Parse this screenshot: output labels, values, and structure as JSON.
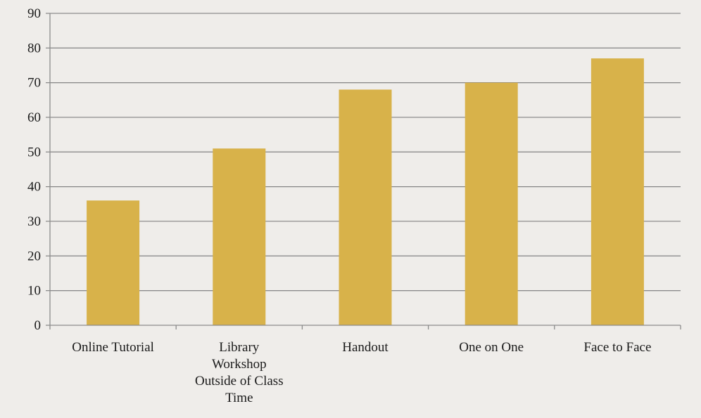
{
  "chart_data": {
    "type": "bar",
    "categories": [
      [
        "Online Tutorial"
      ],
      [
        "Library",
        "Workshop",
        "Outside of Class",
        "Time"
      ],
      [
        "Handout"
      ],
      [
        "One on One"
      ],
      [
        "Face to Face"
      ]
    ],
    "values": [
      36,
      51,
      68,
      70,
      77
    ],
    "title": "",
    "xlabel": "",
    "ylabel": "",
    "ylim": [
      0,
      90
    ],
    "yticks": [
      0,
      10,
      20,
      30,
      40,
      50,
      60,
      70,
      80,
      90
    ],
    "grid": true,
    "legend": "none",
    "bar_color": "#d8b24a",
    "grid_color": "#8c8c8c"
  }
}
